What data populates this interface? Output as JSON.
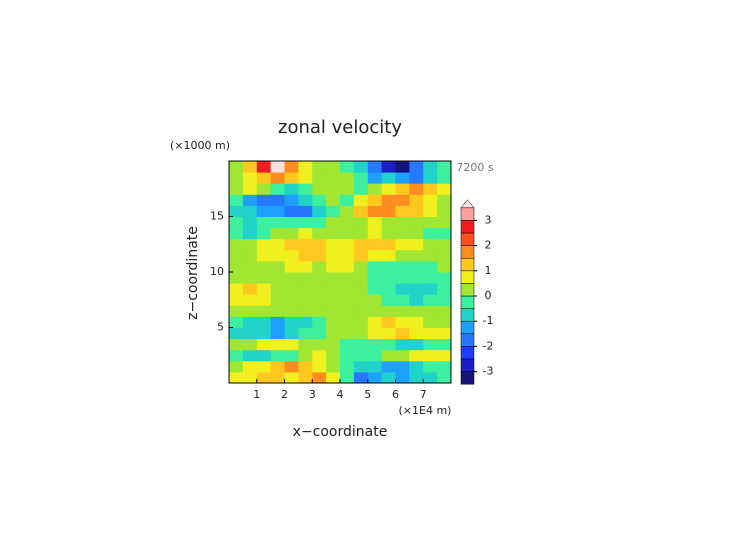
{
  "chart_data": {
    "type": "heatmap",
    "title": "zonal velocity",
    "x_label": "x−coordinate",
    "y_label": "z−coordinate",
    "x_unit": "(×1E4 m)",
    "y_unit": "(×1000 m)",
    "time_label": "7200 s",
    "xlim": [
      0,
      8
    ],
    "ylim": [
      0,
      20
    ],
    "xticks": [
      1,
      2,
      3,
      4,
      5,
      6,
      7
    ],
    "yticks": [
      5,
      10,
      15
    ],
    "x": [
      0.25,
      0.75,
      1.25,
      1.75,
      2.25,
      2.75,
      3.25,
      3.75,
      4.25,
      4.75,
      5.25,
      5.75,
      6.25,
      6.75,
      7.25,
      7.75
    ],
    "y": [
      0.5,
      1.5,
      2.5,
      3.5,
      4.5,
      5.5,
      6.5,
      7.5,
      8.5,
      9.5,
      10.5,
      11.5,
      12.5,
      13.5,
      14.5,
      15.5,
      16.5,
      17.5,
      18.5,
      19.5
    ],
    "z": [
      [
        0.6,
        0.8,
        1.0,
        1.2,
        0.8,
        1.2,
        1.6,
        0.6,
        -0.3,
        -1.6,
        -1.2,
        -0.8,
        -1.2,
        -1.0,
        -0.8,
        -0.5
      ],
      [
        0.3,
        0.5,
        0.8,
        1.3,
        1.5,
        1.0,
        0.6,
        0.3,
        -0.3,
        -0.6,
        -1.0,
        -1.5,
        -1.3,
        -0.8,
        -0.5,
        -0.2
      ],
      [
        -0.5,
        -0.8,
        -0.6,
        -0.4,
        -0.2,
        0.3,
        0.5,
        0.3,
        -0.3,
        -0.5,
        -0.3,
        0.2,
        0.4,
        0.6,
        0.8,
        0.5
      ],
      [
        0.2,
        0.3,
        0.6,
        0.8,
        0.5,
        0.2,
        0.1,
        0.2,
        -0.2,
        -0.1,
        -0.2,
        -0.5,
        -0.8,
        -0.6,
        -0.3,
        -0.2
      ],
      [
        -0.6,
        -0.9,
        -1.0,
        -1.3,
        -0.8,
        -0.5,
        -0.2,
        0.1,
        0.1,
        0.3,
        0.6,
        0.8,
        1.0,
        0.9,
        0.7,
        0.5
      ],
      [
        -0.3,
        -0.6,
        -0.8,
        -1.2,
        -1.0,
        -0.6,
        -0.3,
        0.2,
        0.2,
        0.4,
        0.8,
        1.1,
        0.9,
        0.6,
        0.4,
        0.3
      ],
      [
        0.2,
        0.3,
        0.4,
        0.3,
        0.2,
        0.3,
        0.2,
        0.2,
        0.2,
        0.3,
        0.4,
        0.3,
        0.2,
        0.3,
        0.4,
        0.3
      ],
      [
        0.6,
        0.9,
        0.5,
        0.3,
        0.2,
        0.1,
        0.2,
        0.2,
        0.3,
        0.1,
        0.0,
        -0.2,
        -0.4,
        -0.6,
        -0.5,
        -0.3
      ],
      [
        0.8,
        1.1,
        0.6,
        0.3,
        0.1,
        0.0,
        0.1,
        0.2,
        0.3,
        0.1,
        -0.3,
        -0.5,
        -0.7,
        -0.9,
        -0.6,
        -0.3
      ],
      [
        0.3,
        0.4,
        0.3,
        0.2,
        0.3,
        0.4,
        0.3,
        0.2,
        0.3,
        0.2,
        -0.2,
        -0.4,
        -0.3,
        -0.2,
        -0.3,
        -0.2
      ],
      [
        0.2,
        0.3,
        0.4,
        0.3,
        0.6,
        0.5,
        0.3,
        0.6,
        0.7,
        0.3,
        -0.1,
        -0.3,
        -0.4,
        -0.2,
        -0.1,
        0.2
      ],
      [
        0.3,
        0.4,
        0.5,
        0.6,
        0.8,
        1.0,
        1.1,
        0.8,
        0.8,
        1.1,
        0.9,
        0.6,
        0.3,
        0.4,
        0.3,
        0.2
      ],
      [
        0.2,
        0.3,
        0.5,
        0.7,
        1.0,
        1.2,
        1.0,
        0.6,
        0.6,
        1.0,
        1.2,
        1.0,
        0.7,
        0.5,
        0.4,
        0.3
      ],
      [
        -0.3,
        -0.6,
        -0.4,
        0.0,
        0.3,
        0.5,
        0.4,
        0.3,
        0.3,
        0.4,
        0.5,
        0.3,
        0.2,
        0.0,
        -0.3,
        -0.5
      ],
      [
        -0.4,
        -0.8,
        -0.5,
        -0.3,
        -0.2,
        -0.5,
        -0.3,
        0.3,
        0.3,
        0.4,
        0.5,
        0.3,
        0.2,
        0.3,
        0.4,
        0.3
      ],
      [
        -0.6,
        -1.0,
        -1.5,
        -1.2,
        -1.6,
        -1.8,
        -0.8,
        -0.3,
        0.3,
        1.0,
        1.8,
        1.6,
        1.2,
        1.0,
        0.6,
        0.3
      ],
      [
        -0.5,
        -1.2,
        -2.0,
        -1.8,
        -1.3,
        -1.0,
        -0.4,
        0.2,
        -0.2,
        0.6,
        1.2,
        1.6,
        1.8,
        1.3,
        0.8,
        0.3
      ],
      [
        0.3,
        0.5,
        0.3,
        -0.5,
        -0.8,
        -0.3,
        0.2,
        0.3,
        0.3,
        -0.2,
        0.4,
        0.8,
        1.0,
        1.5,
        1.2,
        0.5
      ],
      [
        0.3,
        0.8,
        1.4,
        1.8,
        1.0,
        0.6,
        0.3,
        0.3,
        0.2,
        -0.5,
        -1.2,
        -1.0,
        -1.4,
        -1.6,
        -0.8,
        -0.2
      ],
      [
        0.3,
        1.0,
        2.6,
        3.6,
        1.5,
        0.8,
        0.4,
        0.2,
        -0.2,
        -0.8,
        -1.8,
        -2.6,
        -3.6,
        -2.0,
        -1.0,
        -0.3
      ]
    ],
    "levels": [
      -3.5,
      -3,
      -2.5,
      -2,
      -1.5,
      -1,
      -0.5,
      0,
      0.5,
      1,
      1.5,
      2,
      2.5,
      3,
      3.5
    ],
    "colors": [
      "#14147a",
      "#1e1ec8",
      "#1e3cff",
      "#2878ff",
      "#1ea0ff",
      "#20d2c8",
      "#3cf0a0",
      "#a0e632",
      "#f0f01e",
      "#ffc81e",
      "#ff8c1e",
      "#ff501e",
      "#f01e1e",
      "#ffa0a0"
    ],
    "over_color": "#ffe0e0",
    "cbticks": [
      -3,
      -2,
      -1,
      0,
      1,
      2,
      3
    ]
  }
}
